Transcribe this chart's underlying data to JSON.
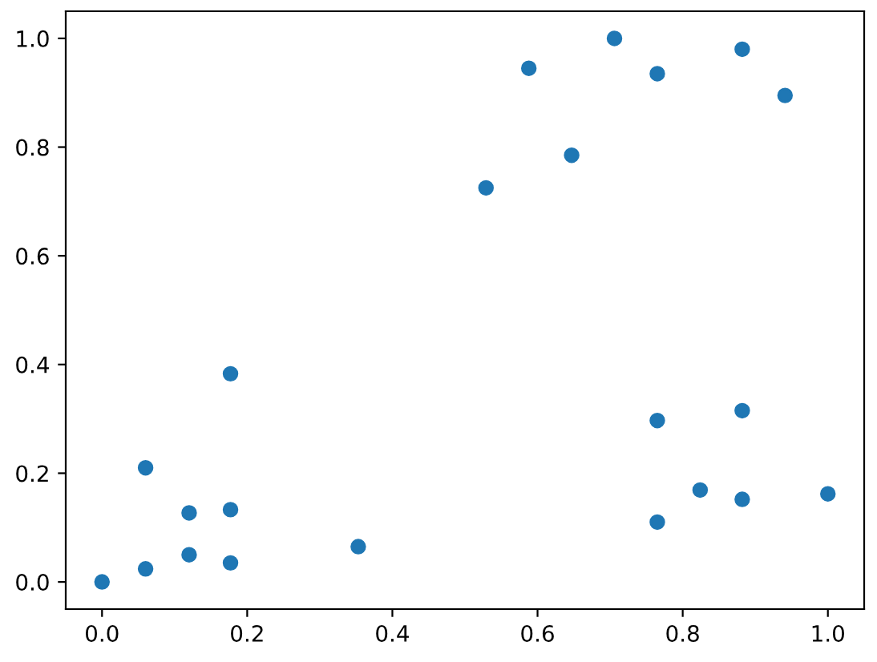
{
  "chart_data": {
    "type": "scatter",
    "color": "#1f77b4",
    "marker": "circle",
    "x": [
      0,
      0.06,
      0.06,
      0.12,
      0.12,
      0.177,
      0.177,
      0.177,
      0.353,
      0.529,
      0.588,
      0.647,
      0.706,
      0.765,
      0.765,
      0.765,
      0.824,
      0.882,
      0.882,
      0.882,
      0.941,
      1.0
    ],
    "values": [
      0,
      0.024,
      0.21,
      0.127,
      0.05,
      0.133,
      0.035,
      0.383,
      0.065,
      0.725,
      0.945,
      0.785,
      1.0,
      0.935,
      0.297,
      0.11,
      0.169,
      0.98,
      0.315,
      0.152,
      0.895,
      0.162
    ],
    "xlim": [
      -0.05,
      1.05
    ],
    "ylim": [
      -0.05,
      1.05
    ],
    "xticks": [
      {
        "value": 0,
        "label": "0.0"
      },
      0.2,
      0.4,
      0.6,
      0.8,
      {
        "value": 1,
        "label": "1.0"
      }
    ],
    "yticks": [
      {
        "value": 0,
        "label": "0.0"
      },
      0.2,
      0.4,
      0.6,
      0.8,
      {
        "value": 1,
        "label": "1.0"
      }
    ]
  }
}
